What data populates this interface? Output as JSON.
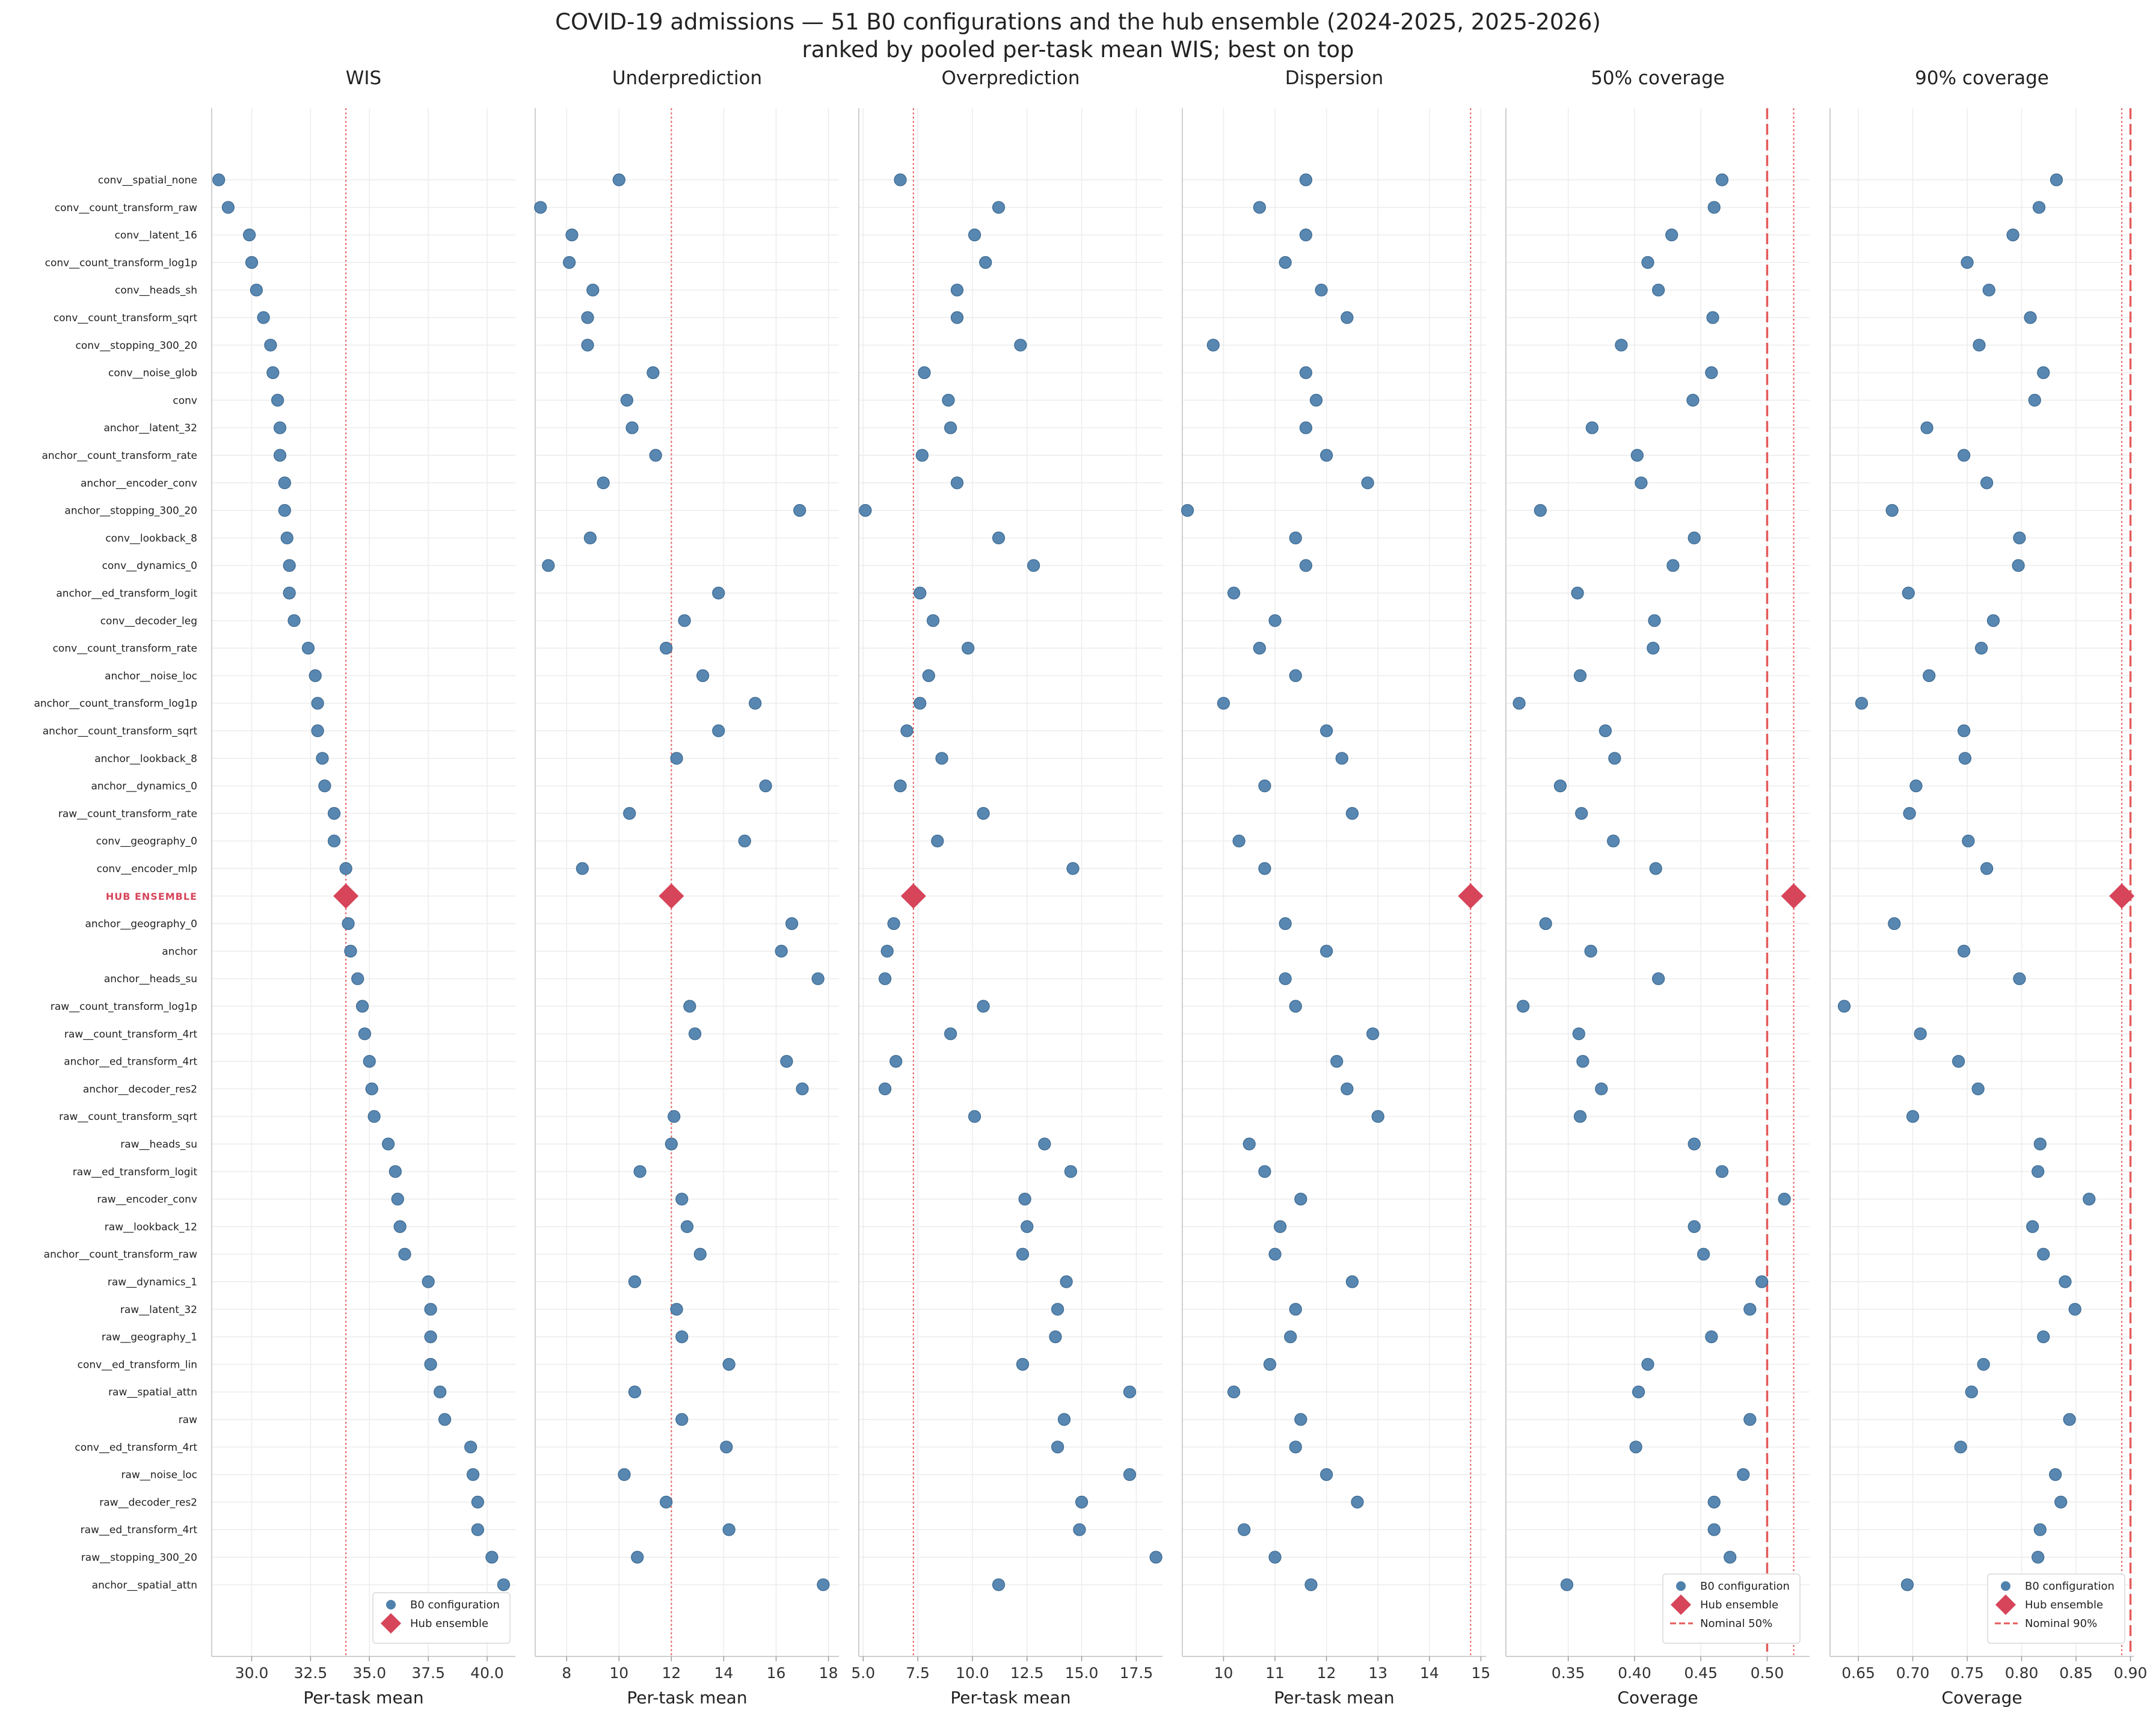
{
  "title": "COVID-19 admissions — 51 B0 configurations and the hub ensemble (2024-2025, 2025-2026)",
  "subtitle": "ranked by pooled per-task mean WIS; best on top",
  "colors": {
    "b0": "#4f81ad",
    "hub": "#d6455a",
    "nominal": "#e65a5a",
    "hub_label": "#d6455a"
  },
  "chart_data": {
    "type": "scatter",
    "orientation": "dot-plot (categories on y)",
    "grid": true,
    "categories": [
      "conv__spatial_none",
      "conv__count_transform_raw",
      "conv__latent_16",
      "conv__count_transform_log1p",
      "conv__heads_sh",
      "conv__count_transform_sqrt",
      "conv__stopping_300_20",
      "conv__noise_glob",
      "conv",
      "anchor__latent_32",
      "anchor__count_transform_rate",
      "anchor__encoder_conv",
      "anchor__stopping_300_20",
      "conv__lookback_8",
      "conv__dynamics_0",
      "anchor__ed_transform_logit",
      "conv__decoder_leg",
      "conv__count_transform_rate",
      "anchor__noise_loc",
      "anchor__count_transform_log1p",
      "anchor__count_transform_sqrt",
      "anchor__lookback_8",
      "anchor__dynamics_0",
      "raw__count_transform_rate",
      "conv__geography_0",
      "conv__encoder_mlp",
      "HUB ENSEMBLE",
      "anchor__geography_0",
      "anchor",
      "anchor__heads_su",
      "raw__count_transform_log1p",
      "raw__count_transform_4rt",
      "anchor__ed_transform_4rt",
      "anchor__decoder_res2",
      "raw__count_transform_sqrt",
      "raw__heads_su",
      "raw__ed_transform_logit",
      "raw__encoder_conv",
      "raw__lookback_12",
      "anchor__count_transform_raw",
      "raw__dynamics_1",
      "raw__latent_32",
      "raw__geography_1",
      "conv__ed_transform_lin",
      "raw__spatial_attn",
      "raw",
      "conv__ed_transform_4rt",
      "raw__noise_loc",
      "raw__decoder_res2",
      "raw__ed_transform_4rt",
      "raw__stopping_300_20",
      "anchor__spatial_attn"
    ],
    "hub_index": 26,
    "panels": [
      {
        "title": "WIS",
        "xlabel": "Per-task mean",
        "xlim": [
          28.3,
          41.2
        ],
        "ticks": [
          30.0,
          32.5,
          35.0,
          37.5,
          40.0
        ],
        "tick_labels": [
          "30.0",
          "32.5",
          "35.0",
          "37.5",
          "40.0"
        ],
        "ref_dotted": 34.0,
        "nominal": null,
        "legend": [
          "B0 configuration",
          "Hub ensemble"
        ],
        "values": [
          28.6,
          29.0,
          29.9,
          30.0,
          30.2,
          30.5,
          30.8,
          30.9,
          31.1,
          31.2,
          31.2,
          31.4,
          31.4,
          31.5,
          31.6,
          31.6,
          31.8,
          32.4,
          32.7,
          32.8,
          32.8,
          33.0,
          33.1,
          33.5,
          33.5,
          34.0,
          34.0,
          34.1,
          34.2,
          34.5,
          34.7,
          34.8,
          35.0,
          35.1,
          35.2,
          35.8,
          36.1,
          36.2,
          36.3,
          36.5,
          37.5,
          37.6,
          37.6,
          37.6,
          38.0,
          38.2,
          39.3,
          39.4,
          39.6,
          39.6,
          40.2,
          40.7
        ]
      },
      {
        "title": "Underprediction",
        "xlabel": "Per-task mean",
        "xlim": [
          6.8,
          18.4
        ],
        "ticks": [
          8,
          10,
          12,
          14,
          16,
          18
        ],
        "tick_labels": [
          "8",
          "10",
          "12",
          "14",
          "16",
          "18"
        ],
        "ref_dotted": 12.0,
        "nominal": null,
        "legend": [],
        "values": [
          10.0,
          7.0,
          8.2,
          8.1,
          9.0,
          8.8,
          8.8,
          11.3,
          10.3,
          10.5,
          11.4,
          9.4,
          16.9,
          8.9,
          7.3,
          13.8,
          12.5,
          11.8,
          13.2,
          15.2,
          13.8,
          12.2,
          15.6,
          10.4,
          14.8,
          8.6,
          12.0,
          16.6,
          16.2,
          17.6,
          12.7,
          12.9,
          16.4,
          17.0,
          12.1,
          12.0,
          10.8,
          12.4,
          12.6,
          13.1,
          10.6,
          12.2,
          12.4,
          14.2,
          10.6,
          12.4,
          14.1,
          10.2,
          11.8,
          14.2,
          10.7,
          17.8
        ]
      },
      {
        "title": "Overprediction",
        "xlabel": "Per-task mean",
        "xlim": [
          4.8,
          18.7
        ],
        "ticks": [
          5.0,
          7.5,
          10.0,
          12.5,
          15.0,
          17.5
        ],
        "tick_labels": [
          "5.0",
          "7.5",
          "10.0",
          "12.5",
          "15.0",
          "17.5"
        ],
        "ref_dotted": 7.3,
        "nominal": null,
        "legend": [],
        "values": [
          6.7,
          11.2,
          10.1,
          10.6,
          9.3,
          9.3,
          12.2,
          7.8,
          8.9,
          9.0,
          7.7,
          9.3,
          5.1,
          11.2,
          12.8,
          7.6,
          8.2,
          9.8,
          8.0,
          7.6,
          7.0,
          8.6,
          6.7,
          10.5,
          8.4,
          14.6,
          7.3,
          6.4,
          6.1,
          6.0,
          10.5,
          9.0,
          6.5,
          6.0,
          10.1,
          13.3,
          14.5,
          12.4,
          12.5,
          12.3,
          14.3,
          13.9,
          13.8,
          12.3,
          17.2,
          14.2,
          13.9,
          17.2,
          15.0,
          14.9,
          18.4,
          11.2
        ]
      },
      {
        "title": "Dispersion",
        "xlabel": "Per-task mean",
        "xlim": [
          9.2,
          15.1
        ],
        "ticks": [
          10,
          11,
          12,
          13,
          14,
          15
        ],
        "tick_labels": [
          "10",
          "11",
          "12",
          "13",
          "14",
          "15"
        ],
        "ref_dotted": 14.8,
        "nominal": null,
        "legend": [],
        "values": [
          11.6,
          10.7,
          11.6,
          11.2,
          11.9,
          12.4,
          9.8,
          11.6,
          11.8,
          11.6,
          12.0,
          12.8,
          9.3,
          11.4,
          11.6,
          10.2,
          11.0,
          10.7,
          11.4,
          10.0,
          12.0,
          12.3,
          10.8,
          12.5,
          10.3,
          10.8,
          14.8,
          11.2,
          12.0,
          11.2,
          11.4,
          12.9,
          12.2,
          12.4,
          13.0,
          10.5,
          10.8,
          11.5,
          11.1,
          11.0,
          12.5,
          11.4,
          11.3,
          10.9,
          10.2,
          11.5,
          11.4,
          12.0,
          12.6,
          10.4,
          11.0,
          11.7
        ]
      },
      {
        "title": "50% coverage",
        "xlabel": "Coverage",
        "xlim": [
          0.303,
          0.532
        ],
        "ticks": [
          0.35,
          0.4,
          0.45,
          0.5
        ],
        "tick_labels": [
          "0.35",
          "0.40",
          "0.45",
          "0.50"
        ],
        "ref_dotted": 0.52,
        "nominal": 0.5,
        "legend": [
          "B0 configuration",
          "Hub ensemble",
          "Nominal 50%"
        ],
        "values": [
          0.466,
          0.46,
          0.428,
          0.41,
          0.418,
          0.459,
          0.39,
          0.458,
          0.444,
          0.368,
          0.402,
          0.405,
          0.329,
          0.445,
          0.429,
          0.357,
          0.415,
          0.414,
          0.359,
          0.313,
          0.378,
          0.385,
          0.344,
          0.36,
          0.384,
          0.416,
          0.52,
          0.333,
          0.367,
          0.418,
          0.316,
          0.358,
          0.361,
          0.375,
          0.359,
          0.445,
          0.466,
          0.513,
          0.445,
          0.452,
          0.496,
          0.487,
          0.458,
          0.41,
          0.403,
          0.487,
          0.401,
          0.482,
          0.46,
          0.46,
          0.472,
          0.349
        ]
      },
      {
        "title": "90% coverage",
        "xlabel": "Coverage",
        "xlim": [
          0.624,
          0.903
        ],
        "ticks": [
          0.65,
          0.7,
          0.75,
          0.8,
          0.85,
          0.9
        ],
        "tick_labels": [
          "0.65",
          "0.70",
          "0.75",
          "0.80",
          "0.85",
          "0.90"
        ],
        "ref_dotted": 0.892,
        "nominal": 0.9,
        "legend": [
          "B0 configuration",
          "Hub ensemble",
          "Nominal 90%"
        ],
        "values": [
          0.832,
          0.816,
          0.792,
          0.75,
          0.77,
          0.808,
          0.761,
          0.82,
          0.812,
          0.713,
          0.747,
          0.768,
          0.681,
          0.798,
          0.797,
          0.696,
          0.774,
          0.763,
          0.715,
          0.653,
          0.747,
          0.748,
          0.703,
          0.697,
          0.751,
          0.768,
          0.892,
          0.683,
          0.747,
          0.798,
          0.637,
          0.707,
          0.742,
          0.76,
          0.7,
          0.817,
          0.815,
          0.862,
          0.81,
          0.82,
          0.84,
          0.849,
          0.82,
          0.765,
          0.754,
          0.844,
          0.744,
          0.831,
          0.836,
          0.817,
          0.815,
          0.695
        ]
      }
    ]
  }
}
